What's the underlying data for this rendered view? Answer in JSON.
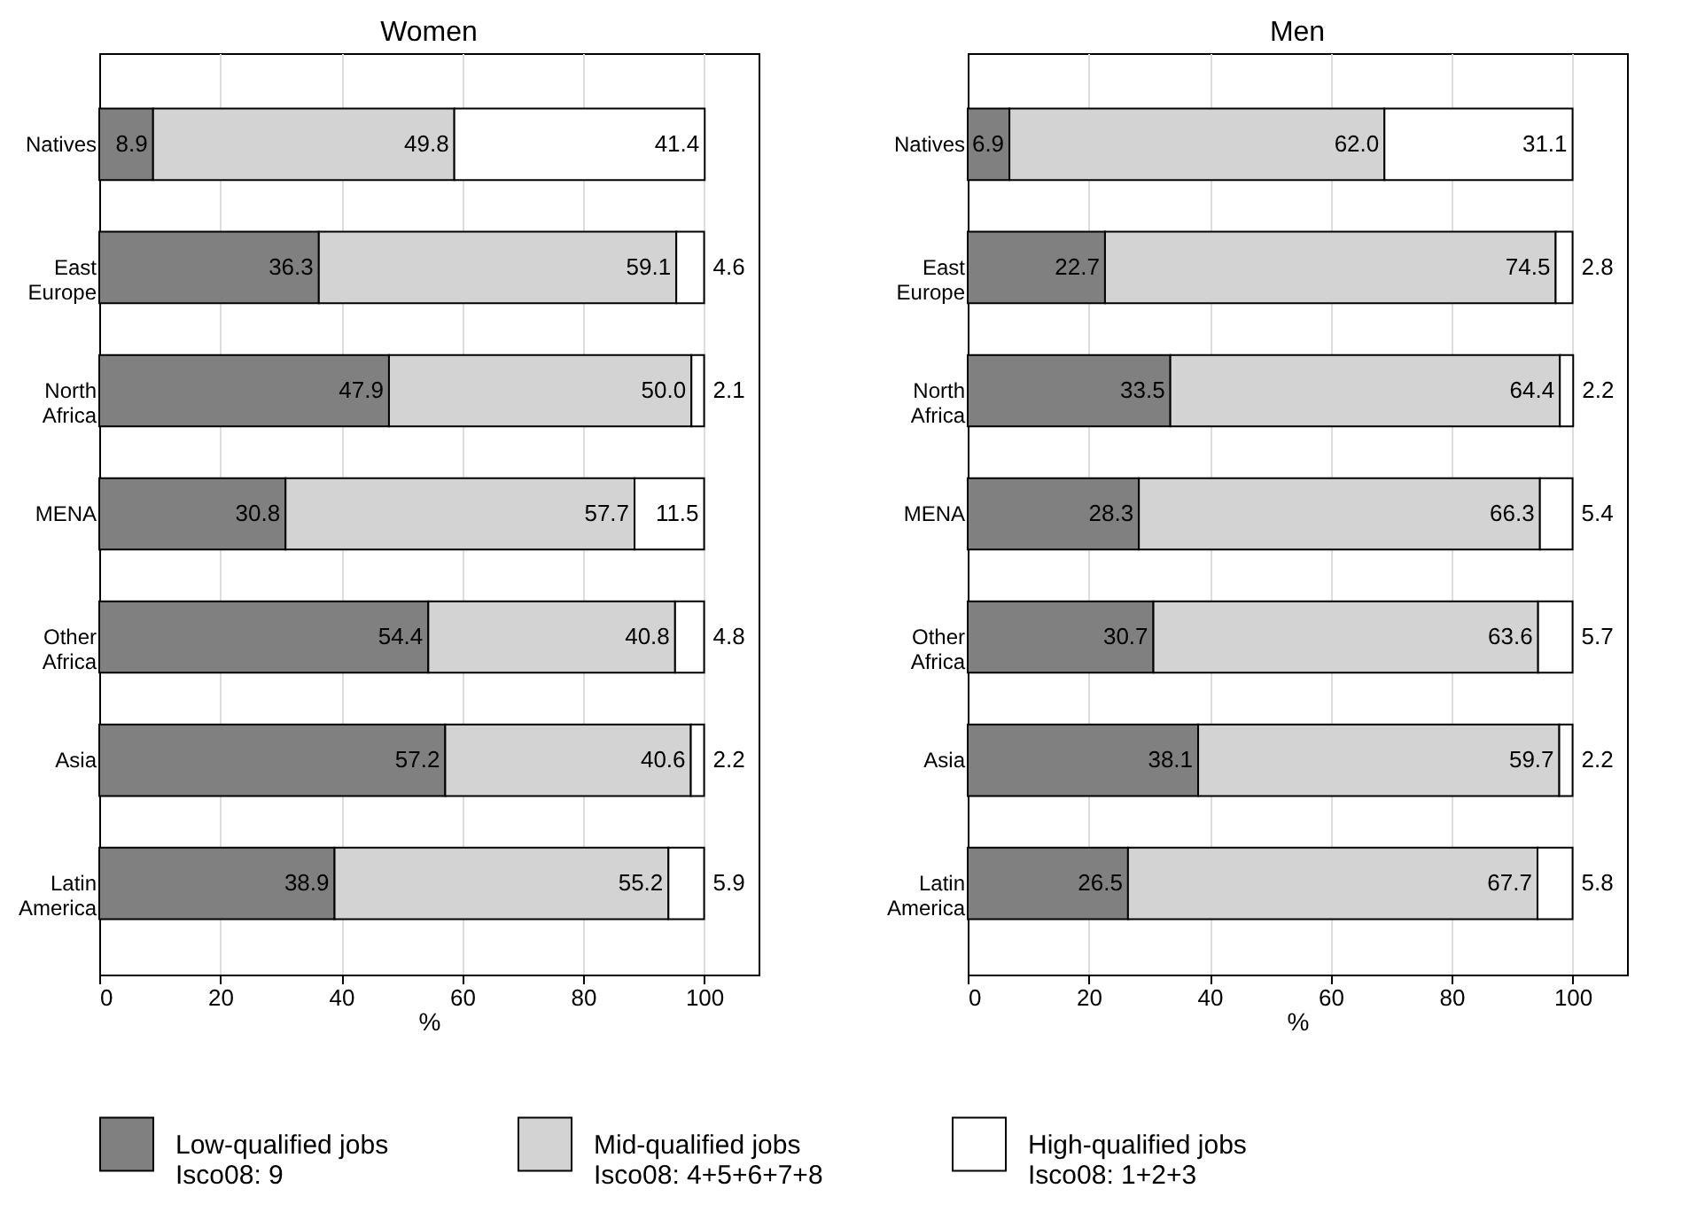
{
  "chart_data": [
    {
      "type": "bar",
      "title": "Women",
      "orientation": "horizontal",
      "stacked": true,
      "xlabel": "%",
      "categories": [
        "Natives",
        "East Europe",
        "North Africa",
        "MENA",
        "Other Africa",
        "Asia",
        "Latin America"
      ],
      "series": [
        {
          "name": "Low-qualified jobs\nIsco08: 9",
          "color": "#808080",
          "values": [
            8.9,
            36.3,
            47.9,
            30.8,
            54.4,
            57.2,
            38.9
          ],
          "value_labels": [
            "8.9",
            "36.3",
            "47.9",
            "30.8",
            "54.4",
            "57.2",
            "38.9"
          ]
        },
        {
          "name": "Mid-qualified jobs\nIsco08: 4+5+6+7+8",
          "color": "#d3d3d3",
          "values": [
            49.8,
            59.1,
            50.0,
            57.7,
            40.8,
            40.6,
            55.2
          ],
          "value_labels": [
            "49.8",
            "59.1",
            "50.0",
            "57.7",
            "40.8",
            "40.6",
            "55.2"
          ]
        },
        {
          "name": "High-qualified jobs\nIsco08: 1+2+3",
          "color": "#ffffff",
          "values": [
            41.4,
            4.6,
            2.1,
            11.5,
            4.8,
            2.2,
            5.9
          ],
          "value_labels": [
            "41.4",
            "4.6",
            "2.1",
            "11.5",
            "4.8",
            "2.2",
            "5.9"
          ]
        }
      ],
      "xlim": [
        0,
        109
      ],
      "xticks": [
        0,
        20,
        40,
        60,
        80,
        100
      ],
      "grid": "x",
      "legend": "bottom"
    },
    {
      "type": "bar",
      "title": "Men",
      "orientation": "horizontal",
      "stacked": true,
      "xlabel": "%",
      "categories": [
        "Natives",
        "East Europe",
        "North Africa",
        "MENA",
        "Other Africa",
        "Asia",
        "Latin America"
      ],
      "series": [
        {
          "name": "Low-qualified jobs\nIsco08: 9",
          "color": "#808080",
          "values": [
            6.9,
            22.7,
            33.5,
            28.3,
            30.7,
            38.1,
            26.5
          ],
          "value_labels": [
            "6.9",
            "22.7",
            "33.5",
            "28.3",
            "30.7",
            "38.1",
            "26.5"
          ]
        },
        {
          "name": "Mid-qualified jobs\nIsco08: 4+5+6+7+8",
          "color": "#d3d3d3",
          "values": [
            62.0,
            74.5,
            64.4,
            66.3,
            63.6,
            59.7,
            67.7
          ],
          "value_labels": [
            "62.0",
            "74.5",
            "64.4",
            "66.3",
            "63.6",
            "59.7",
            "67.7"
          ]
        },
        {
          "name": "High-qualified jobs\nIsco08: 1+2+3",
          "color": "#ffffff",
          "values": [
            31.1,
            2.8,
            2.2,
            5.4,
            5.7,
            2.2,
            5.8
          ],
          "value_labels": [
            "31.1",
            "2.8",
            "2.2",
            "5.4",
            "5.7",
            "2.2",
            "5.8"
          ]
        }
      ],
      "xlim": [
        0,
        109
      ],
      "xticks": [
        0,
        20,
        40,
        60,
        80,
        100
      ],
      "grid": "x",
      "legend": "bottom"
    }
  ]
}
